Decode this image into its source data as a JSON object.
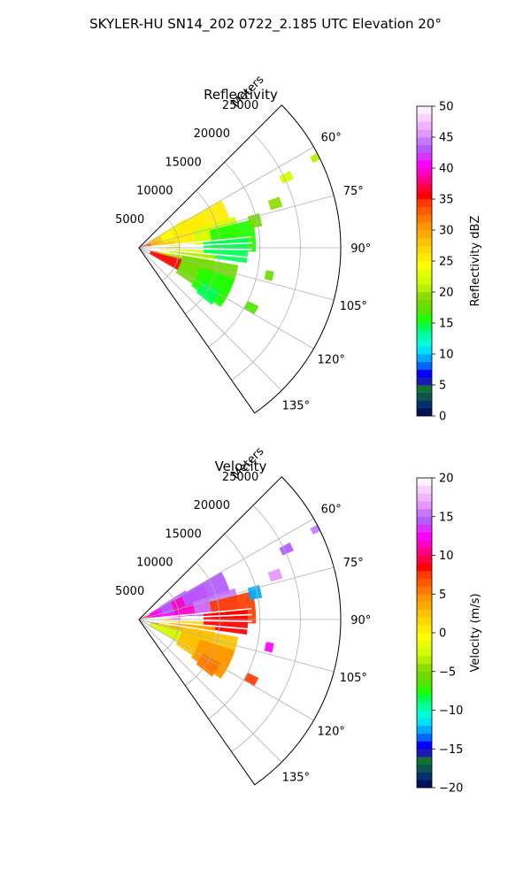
{
  "figure": {
    "title": "SKYLER-HU  SN14_202  0722_2.185 UTC Elevation 20°"
  },
  "chart_data": [
    {
      "type": "polar-sector",
      "title": "Reflectivity",
      "radial_axis": {
        "label": "Meters",
        "ticks": [
          5000,
          10000,
          15000,
          20000,
          25000
        ],
        "tick_labels": [
          "5000",
          "10000",
          "15000",
          "20000",
          "25000"
        ],
        "range": [
          0,
          25000
        ]
      },
      "angular_axis": {
        "range_deg": [
          45,
          145
        ],
        "ticks": [
          60,
          75,
          90,
          105,
          120,
          135
        ],
        "tick_labels": [
          "60°",
          "75°",
          "90°",
          "105°",
          "120°",
          "135°"
        ]
      },
      "grid": true,
      "colorbar": {
        "label": "Reflectivity dBZ",
        "range": [
          0,
          50
        ],
        "ticks": [
          0,
          5,
          10,
          15,
          20,
          25,
          30,
          35,
          40,
          45,
          50
        ],
        "tick_labels": [
          "0",
          "5",
          "10",
          "15",
          "20",
          "25",
          "30",
          "35",
          "40",
          "45",
          "50"
        ],
        "colors": [
          "#00115a",
          "#04306e",
          "#0c5548",
          "#127038",
          "#1a1ab4",
          "#0000ff",
          "#0064ff",
          "#00aaff",
          "#00e1ff",
          "#00ffd2",
          "#00ffa0",
          "#00ff55",
          "#1eff00",
          "#50e600",
          "#6edc00",
          "#8cdc00",
          "#b4f000",
          "#d2ff00",
          "#e6ff00",
          "#ffff00",
          "#ffeb00",
          "#ffd700",
          "#ffc300",
          "#ffaa00",
          "#ff9600",
          "#ff7800",
          "#ff5a00",
          "#ff3c00",
          "#ff0000",
          "#ff0046",
          "#ff0082",
          "#ff00c8",
          "#ff00ff",
          "#dc32ff",
          "#b45aff",
          "#c878ff",
          "#e696ff",
          "#f0b4ff",
          "#f8d2ff",
          "#fff0ff"
        ]
      },
      "regions": [
        {
          "theta": [
            66,
            92
          ],
          "r": [
            0,
            2500
          ],
          "value": 34
        },
        {
          "theta": [
            60,
            90
          ],
          "r": [
            1500,
            5200
          ],
          "value": 28
        },
        {
          "theta": [
            58,
            78
          ],
          "r": [
            3000,
            6800
          ],
          "value": 24
        },
        {
          "theta": [
            62,
            86
          ],
          "r": [
            4500,
            9000
          ],
          "value": 25
        },
        {
          "theta": [
            60,
            74
          ],
          "r": [
            6000,
            11800
          ],
          "value": 26
        },
        {
          "theta": [
            72,
            88
          ],
          "r": [
            7000,
            12500
          ],
          "value": 22
        },
        {
          "theta": [
            76,
            92
          ],
          "r": [
            9000,
            14500
          ],
          "value": 16
        },
        {
          "theta": [
            84,
            98
          ],
          "r": [
            8000,
            13500
          ],
          "value": 14
        },
        {
          "theta": [
            88,
            104
          ],
          "r": [
            0,
            4000
          ],
          "value": 30
        },
        {
          "theta": [
            92,
            110
          ],
          "r": [
            2500,
            8000
          ],
          "value": 22
        },
        {
          "theta": [
            95,
            118
          ],
          "r": [
            4000,
            9500
          ],
          "value": 20
        },
        {
          "theta": [
            100,
            124
          ],
          "r": [
            5500,
            12500
          ],
          "value": 18
        },
        {
          "theta": [
            108,
            126
          ],
          "r": [
            8000,
            12500
          ],
          "value": 16
        },
        {
          "theta": [
            104,
            120
          ],
          "r": [
            1500,
            5500
          ],
          "value": 35
        },
        {
          "theta": [
            118,
            128
          ],
          "r": [
            9000,
            11500
          ],
          "value": 14
        },
        {
          "theta": [
            74,
            80
          ],
          "r": [
            14000,
            15500
          ],
          "value": 18
        },
        {
          "theta": [
            70,
            74
          ],
          "r": [
            17000,
            18500
          ],
          "value": 19
        },
        {
          "theta": [
            63,
            66
          ],
          "r": [
            19500,
            21000
          ],
          "value": 22
        },
        {
          "theta": [
            62,
            64
          ],
          "r": [
            24000,
            25000
          ],
          "value": 21
        },
        {
          "theta": [
            100,
            104
          ],
          "r": [
            16000,
            17000
          ],
          "value": 18
        },
        {
          "theta": [
            116,
            120
          ],
          "r": [
            15000,
            16500
          ],
          "value": 17
        }
      ]
    },
    {
      "type": "polar-sector",
      "title": "Velocity",
      "radial_axis": {
        "label": "Meters",
        "ticks": [
          5000,
          10000,
          15000,
          20000,
          25000
        ],
        "tick_labels": [
          "5000",
          "10000",
          "15000",
          "20000",
          "25000"
        ],
        "range": [
          0,
          25000
        ]
      },
      "angular_axis": {
        "range_deg": [
          45,
          145
        ],
        "ticks": [
          60,
          75,
          90,
          105,
          120,
          135
        ],
        "tick_labels": [
          "60°",
          "75°",
          "90°",
          "105°",
          "120°",
          "135°"
        ]
      },
      "grid": true,
      "colorbar": {
        "label": "Velocity (m/s)",
        "range": [
          -20,
          20
        ],
        "ticks": [
          -20,
          -15,
          -10,
          -5,
          0,
          5,
          10,
          15,
          20
        ],
        "tick_labels": [
          "−20",
          "−15",
          "−10",
          "−5",
          "0",
          "5",
          "10",
          "15",
          "20"
        ],
        "colors": [
          "#00115a",
          "#04306e",
          "#0c5548",
          "#127038",
          "#1a1ab4",
          "#0000ff",
          "#0064ff",
          "#00aaff",
          "#00e1ff",
          "#00ffd2",
          "#00ffa0",
          "#00ff55",
          "#1eff00",
          "#50e600",
          "#6edc00",
          "#8cdc00",
          "#b4f000",
          "#d2ff00",
          "#e6ff00",
          "#ffff00",
          "#ffeb00",
          "#ffd700",
          "#ffc300",
          "#ffaa00",
          "#ff9600",
          "#ff7800",
          "#ff5a00",
          "#ff3c00",
          "#ff0000",
          "#ff0046",
          "#ff0082",
          "#ff00c8",
          "#ff00ff",
          "#dc32ff",
          "#b45aff",
          "#c878ff",
          "#e696ff",
          "#f0b4ff",
          "#f8d2ff",
          "#fff0ff"
        ]
      },
      "regions": [
        {
          "theta": [
            66,
            92
          ],
          "r": [
            0,
            2500
          ],
          "value": 9
        },
        {
          "theta": [
            60,
            90
          ],
          "r": [
            1500,
            5200
          ],
          "value": 12
        },
        {
          "theta": [
            58,
            78
          ],
          "r": [
            3000,
            6800
          ],
          "value": 14
        },
        {
          "theta": [
            62,
            86
          ],
          "r": [
            4500,
            9000
          ],
          "value": 11
        },
        {
          "theta": [
            60,
            74
          ],
          "r": [
            6000,
            11800
          ],
          "value": 14
        },
        {
          "theta": [
            72,
            88
          ],
          "r": [
            7000,
            12500
          ],
          "value": 15
        },
        {
          "theta": [
            76,
            92
          ],
          "r": [
            9000,
            14500
          ],
          "value": 7
        },
        {
          "theta": [
            84,
            98
          ],
          "r": [
            8000,
            13500
          ],
          "value": 8
        },
        {
          "theta": [
            88,
            104
          ],
          "r": [
            0,
            4000
          ],
          "value": 6
        },
        {
          "theta": [
            92,
            110
          ],
          "r": [
            2500,
            8000
          ],
          "value": 1
        },
        {
          "theta": [
            95,
            118
          ],
          "r": [
            4000,
            9500
          ],
          "value": 3
        },
        {
          "theta": [
            100,
            124
          ],
          "r": [
            5500,
            12500
          ],
          "value": 2
        },
        {
          "theta": [
            108,
            126
          ],
          "r": [
            8000,
            12500
          ],
          "value": 4
        },
        {
          "theta": [
            104,
            120
          ],
          "r": [
            1500,
            5500
          ],
          "value": -3
        },
        {
          "theta": [
            118,
            128
          ],
          "r": [
            9000,
            11500
          ],
          "value": 5
        },
        {
          "theta": [
            74,
            80
          ],
          "r": [
            14000,
            15500
          ],
          "value": -13
        },
        {
          "theta": [
            70,
            74
          ],
          "r": [
            17000,
            18500
          ],
          "value": 16
        },
        {
          "theta": [
            63,
            66
          ],
          "r": [
            19500,
            21000
          ],
          "value": 14
        },
        {
          "theta": [
            62,
            64
          ],
          "r": [
            24000,
            25000
          ],
          "value": 15
        },
        {
          "theta": [
            100,
            104
          ],
          "r": [
            16000,
            17000
          ],
          "value": 12
        },
        {
          "theta": [
            116,
            120
          ],
          "r": [
            15000,
            16500
          ],
          "value": 7
        }
      ]
    }
  ]
}
